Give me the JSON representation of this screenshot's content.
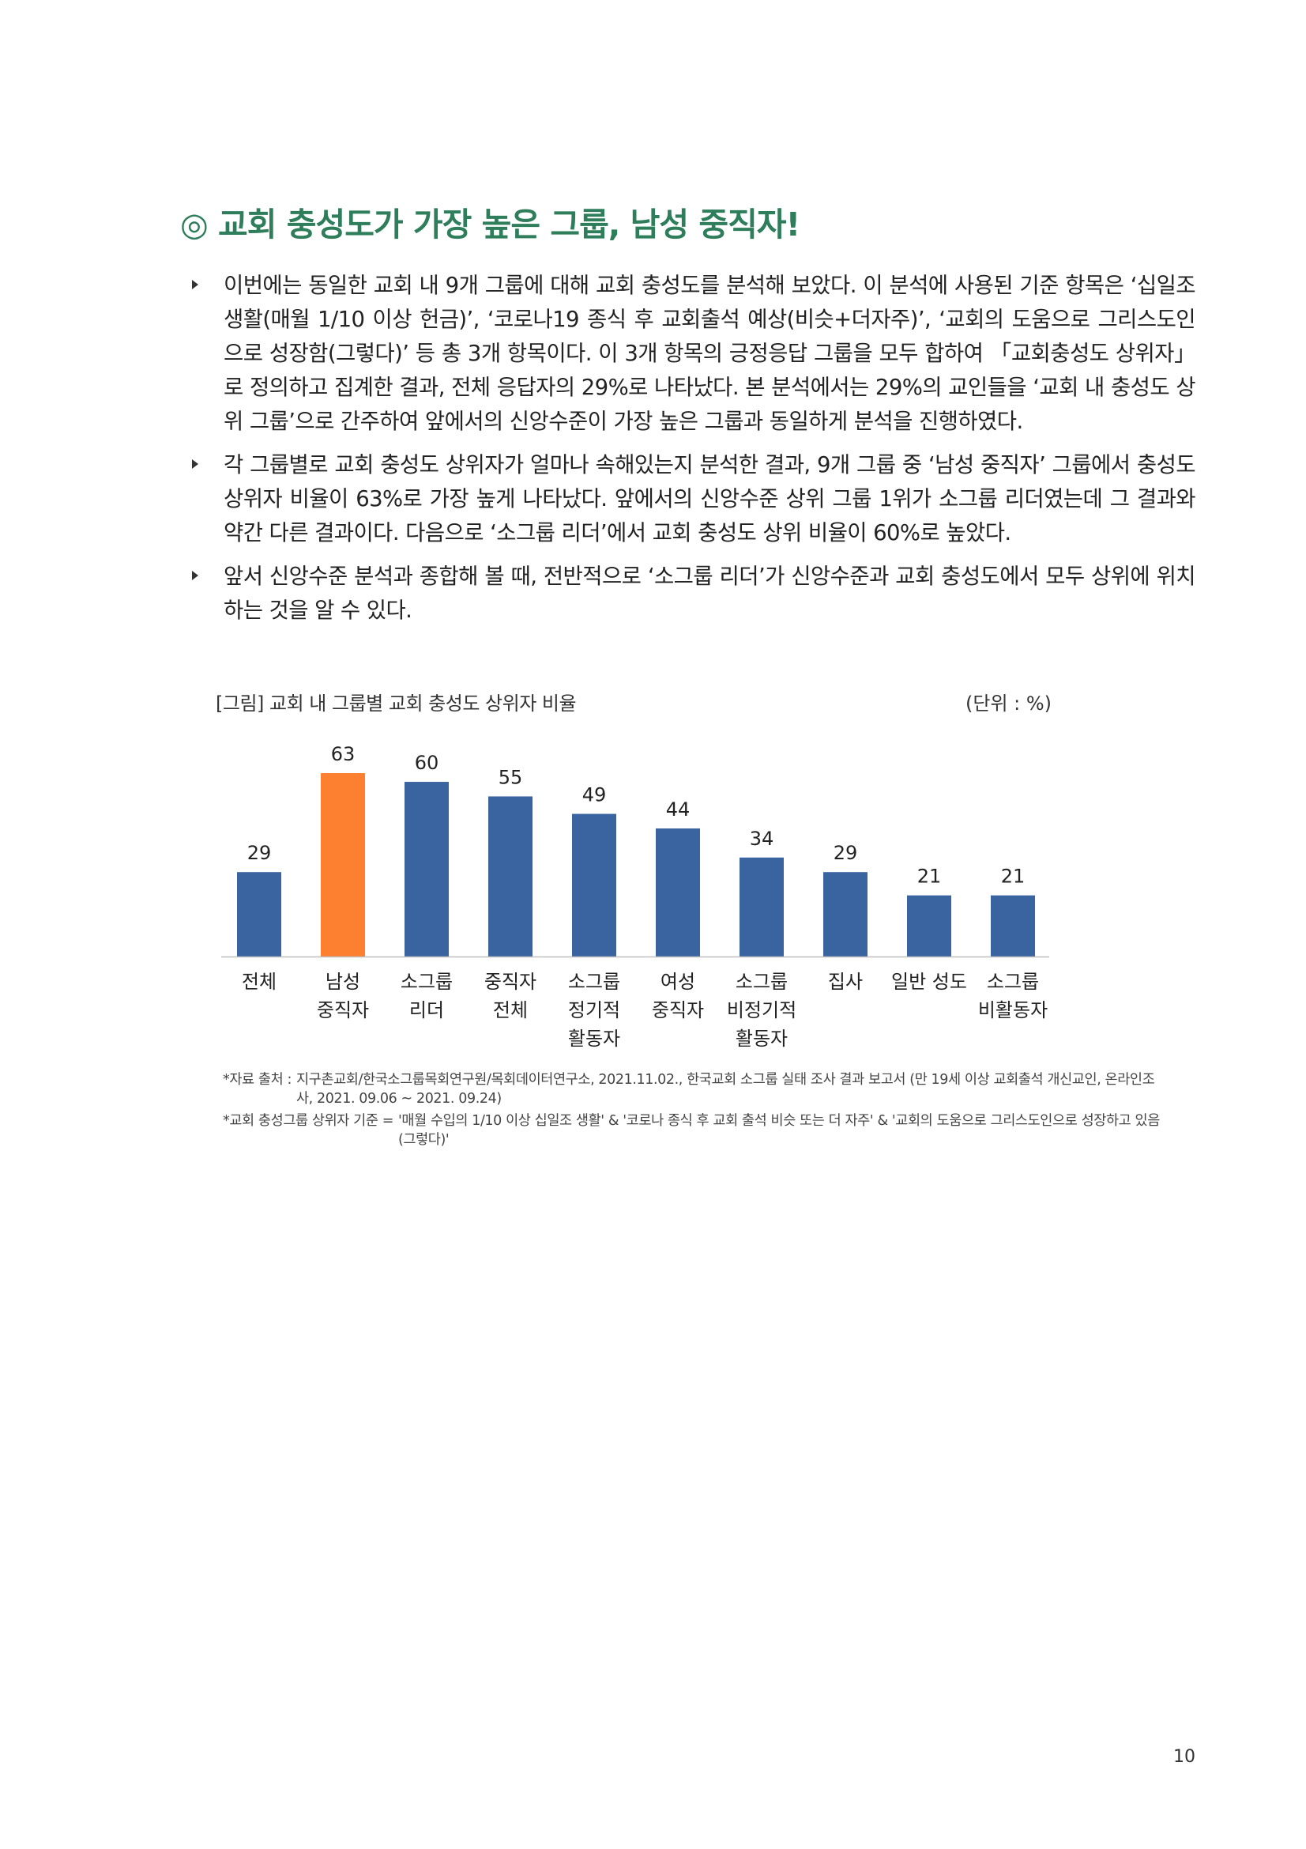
{
  "title": "◎ 교회 충성도가 가장 높은 그룹, 남성 중직자!",
  "bullets": [
    "이번에는 동일한 교회 내 9개 그룹에 대해 교회 충성도를 분석해 보았다. 이 분석에 사용된 기준 항목은 ‘십일조 생활(매월 1/10 이상 헌금)’, ‘코로나19 종식 후 교회출석 예상(비슷+더자주)’, ‘교회의 도움으로 그리스도인으로 성장함(그렇다)’ 등 총 3개 항목이다. 이 3개 항목의 긍정응답 그룹을 모두 합하여 「교회충성도 상위자」로 정의하고 집계한 결과, 전체 응답자의 29%로 나타났다. 본 분석에서는 29%의 교인들을 ‘교회 내 충성도 상위 그룹’으로 간주하여 앞에서의 신앙수준이 가장 높은 그룹과 동일하게 분석을 진행하였다.",
    "각 그룹별로 교회 충성도 상위자가 얼마나 속해있는지 분석한 결과, 9개 그룹 중 ‘남성 중직자’ 그룹에서 충성도 상위자 비율이 63%로 가장 높게 나타났다. 앞에서의 신앙수준 상위 그룹 1위가 소그룹 리더였는데 그 결과와 약간 다른 결과이다. 다음으로 ‘소그룹 리더’에서 교회 충성도 상위 비율이 60%로 높았다.",
    "앞서 신앙수준 분석과 종합해 볼 때, 전반적으로 ‘소그룹 리더’가 신앙수준과 교회 충성도에서 모두 상위에 위치하는 것을 알 수 있다."
  ],
  "chart_caption": "[그림] 교회 내 그룹별 교회 충성도 상위자 비율",
  "chart_unit": "(단위 : %)",
  "chart_data": {
    "type": "bar",
    "title": "[그림] 교회 내 그룹별 교회 충성도 상위자 비율",
    "unit": "%",
    "categories": [
      [
        "전체"
      ],
      [
        "남성",
        "중직자"
      ],
      [
        "소그룹",
        "리더"
      ],
      [
        "중직자",
        "전체"
      ],
      [
        "소그룹",
        "정기적",
        "활동자"
      ],
      [
        "여성",
        "중직자"
      ],
      [
        "소그룹",
        "비정기적",
        "활동자"
      ],
      [
        "집사"
      ],
      [
        "일반 성도"
      ],
      [
        "소그룹",
        "비활동자"
      ]
    ],
    "values": [
      29,
      63,
      60,
      55,
      49,
      44,
      34,
      29,
      21,
      21
    ],
    "highlight_index": 1,
    "colors": {
      "default": "#3a64a0",
      "highlight": "#fd7f30"
    },
    "ylim": [
      0,
      63
    ],
    "grid": false,
    "legend": "none"
  },
  "notes": [
    {
      "label": "*자료 출처 :",
      "text": "지구촌교회/한국소그룹목회연구원/목회데이터연구소, 2021.11.02., 한국교회 소그룹 실태 조사 결과 보고서 (만 19세 이상 교회출석 개신교인, 온라인조사, 2021. 09.06 ~ 2021. 09.24)"
    },
    {
      "label": "*교회 충성그룹 상위자 기준 =",
      "text": "'매월 수입의 1/10 이상 십일조 생활' & '코로나 종식 후 교회 출석 비슷 또는 더 자주' & '교회의 도움으로 그리스도인으로 성장하고 있음(그렇다)'"
    }
  ],
  "page_number": "10"
}
